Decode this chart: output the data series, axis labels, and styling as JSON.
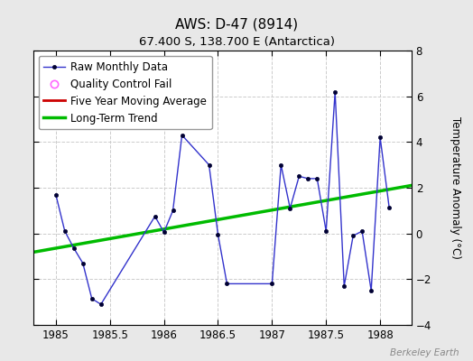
{
  "title": "AWS: D-47 (8914)",
  "subtitle": "67.400 S, 138.700 E (Antarctica)",
  "ylabel": "Temperature Anomaly (°C)",
  "watermark": "Berkeley Earth",
  "background_color": "#e8e8e8",
  "plot_bg_color": "#ffffff",
  "xlim": [
    1984.79,
    1988.29
  ],
  "ylim": [
    -4,
    8
  ],
  "yticks": [
    -4,
    -2,
    0,
    2,
    4,
    6,
    8
  ],
  "xticks": [
    1985,
    1985.5,
    1986,
    1986.5,
    1987,
    1987.5,
    1988
  ],
  "raw_x": [
    1985.0,
    1985.083,
    1985.167,
    1985.25,
    1985.333,
    1985.417,
    1985.917,
    1986.0,
    1986.083,
    1986.167,
    1986.417,
    1986.5,
    1986.583,
    1987.0,
    1987.083,
    1987.167,
    1987.25,
    1987.333,
    1987.417,
    1987.5,
    1987.583,
    1987.667,
    1987.75,
    1987.833,
    1987.917,
    1988.0,
    1988.083
  ],
  "raw_y": [
    1.7,
    0.1,
    -0.65,
    -1.3,
    -2.85,
    -3.1,
    0.75,
    0.05,
    1.0,
    4.3,
    3.0,
    -0.05,
    -2.2,
    -2.2,
    3.0,
    1.1,
    2.5,
    2.4,
    2.4,
    0.1,
    6.2,
    -2.3,
    -0.1,
    0.1,
    -2.5,
    4.2,
    1.15
  ],
  "trend_x": [
    1984.79,
    1988.29
  ],
  "trend_y": [
    -0.82,
    2.1
  ],
  "line_color": "#3333cc",
  "marker_color": "#000033",
  "qc_color": "#ff66ff",
  "moving_avg_color": "#cc0000",
  "trend_color": "#00bb00",
  "grid_color": "#cccccc",
  "legend_fontsize": 8.5,
  "title_fontsize": 11,
  "subtitle_fontsize": 9.5
}
